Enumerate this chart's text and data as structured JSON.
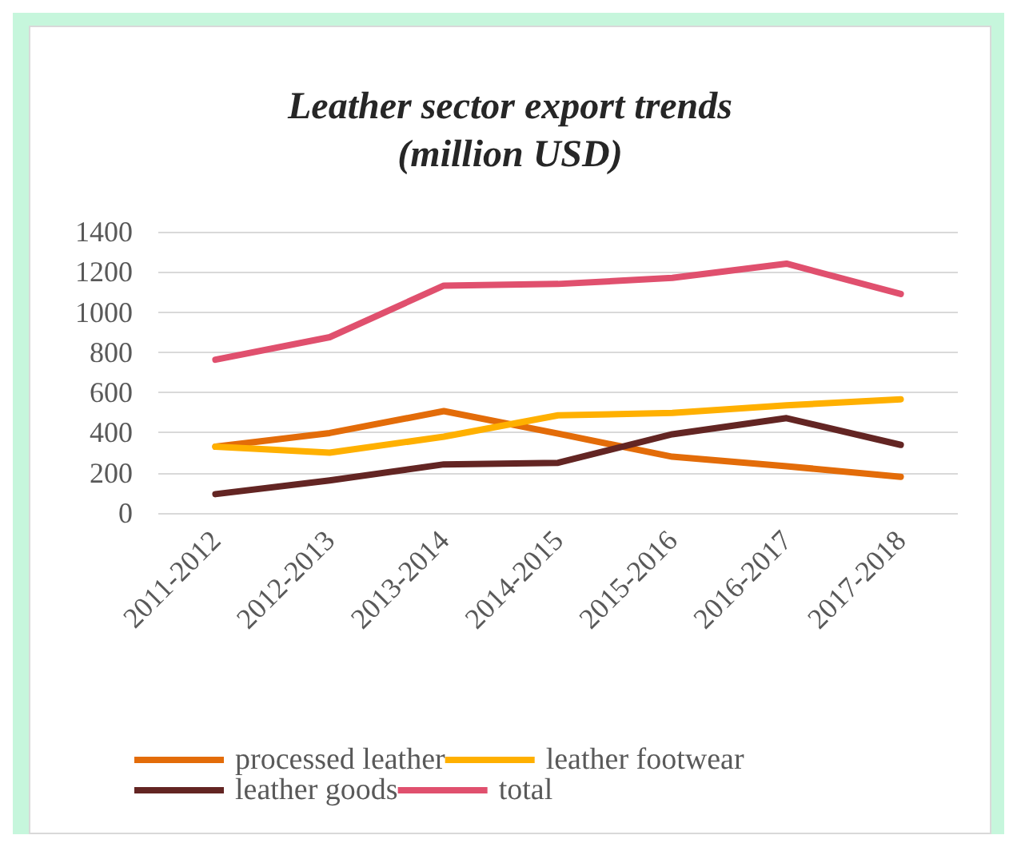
{
  "chart_data": {
    "type": "line",
    "title": "Leather sector export trends\n(million USD)",
    "categories": [
      "2011-2012",
      "2012-2013",
      "2013-2014",
      "2014-2015",
      "2015-2016",
      "2016-2017",
      "2017-2018"
    ],
    "series": [
      {
        "name": "processed leather",
        "color": "#e36c09",
        "values": [
          330,
          398,
          507,
          395,
          280,
          233,
          180
        ]
      },
      {
        "name": "leather footwear",
        "color": "#ffb000",
        "values": [
          330,
          300,
          380,
          486,
          498,
          536,
          566
        ]
      },
      {
        "name": "leather goods",
        "color": "#632523",
        "values": [
          94,
          162,
          242,
          250,
          392,
          472,
          339
        ]
      },
      {
        "name": "total",
        "color": "#e0506e",
        "values": [
          763,
          875,
          1132,
          1140,
          1170,
          1241,
          1090
        ]
      }
    ],
    "ylim": [
      0,
      1400
    ],
    "yticks": [
      0,
      200,
      400,
      600,
      800,
      1000,
      1200,
      1400
    ],
    "grid": "y",
    "legend": "bottom",
    "marker": "none",
    "line_style": "solid"
  }
}
